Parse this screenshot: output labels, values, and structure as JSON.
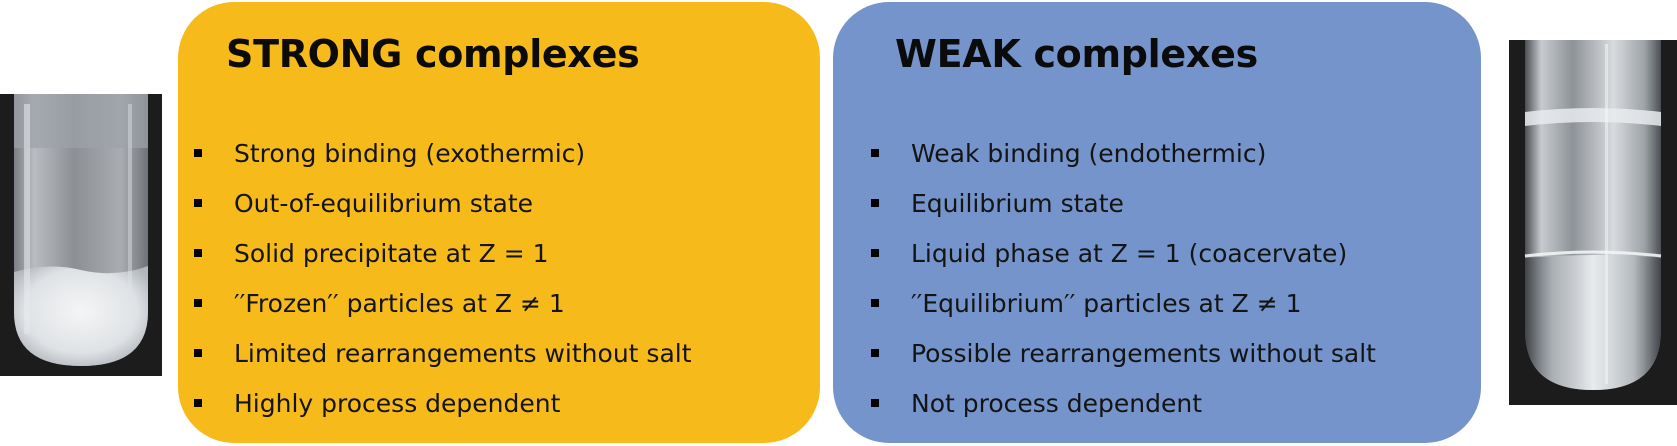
{
  "colors": {
    "strong_panel": "#F6BA1B",
    "weak_panel": "#7594CB",
    "text": "#141414",
    "photo_background": "#1C1C1C"
  },
  "strong": {
    "title": "STRONG complexes",
    "items": [
      "Strong binding (exothermic)",
      "Out-of-equilibrium state",
      "Solid precipitate at Z = 1",
      "′′Frozen′′ particles at Z ≠ 1",
      "Limited rearrangements without salt",
      "Highly process dependent"
    ]
  },
  "weak": {
    "title": "WEAK complexes",
    "items": [
      "Weak binding (endothermic)",
      "Equilibrium state",
      "Liquid phase at Z = 1 (coacervate)",
      "′′Equilibrium′′ particles at Z ≠ 1",
      "Possible rearrangements without salt",
      "Not process dependent"
    ]
  },
  "photos": {
    "left": {
      "subject": "test tube with white solid precipitate"
    },
    "right": {
      "subject": "test tube with clear liquid coacervate phase"
    }
  }
}
